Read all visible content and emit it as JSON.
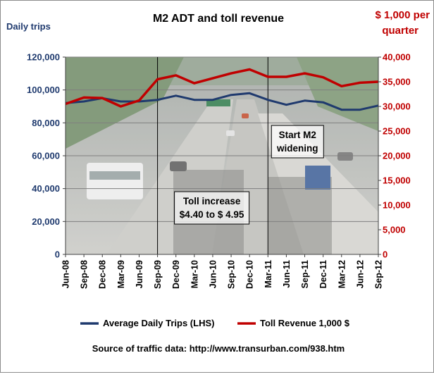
{
  "chart_data": {
    "type": "line",
    "title": "M2 ADT and toll revenue",
    "ylabel_left": "Daily trips",
    "ylabel_right": "$ 1,000 per quarter",
    "y_left_ticks": [
      "0",
      "20,000",
      "40,000",
      "60,000",
      "80,000",
      "100,000",
      "120,000"
    ],
    "y_left_lim": [
      0,
      120000
    ],
    "y_right_ticks": [
      "0",
      "5,000",
      "10,000",
      "15,000",
      "20,000",
      "25,000",
      "30,000",
      "35,000",
      "40,000"
    ],
    "y_right_lim": [
      0,
      40000
    ],
    "x_tick_labels": [
      "Jun-08",
      "Sep-08",
      "Dec-08",
      "Mar-09",
      "Jun-09",
      "Sep-09",
      "Dec-09",
      "Mar-10",
      "Jun-10",
      "Sep-10",
      "Dec-10",
      "Mar-11",
      "Jun-11",
      "Sep-11",
      "Dec-11",
      "Mar-12",
      "Jun-12",
      "Sep-12"
    ],
    "series": [
      {
        "name": "Average Daily Trips (LHS)",
        "axis": "left",
        "color": "#1f3a6e",
        "values": [
          92000,
          93000,
          95000,
          93000,
          93000,
          94000,
          96500,
          94000,
          94000,
          97000,
          98000,
          94000,
          91000,
          93500,
          92500,
          88000,
          88000,
          90500
        ]
      },
      {
        "name": "Toll Revenue 1,000 $",
        "axis": "right",
        "color": "#c00000",
        "values": [
          30500,
          31800,
          31700,
          30000,
          31200,
          35500,
          36300,
          34700,
          35700,
          36700,
          37500,
          36000,
          36000,
          36700,
          35900,
          34100,
          34800,
          35000
        ]
      }
    ],
    "annotations": [
      {
        "text_lines": [
          "Toll increase",
          "$4.40 to $ 4.95"
        ],
        "at": "Sep-09"
      },
      {
        "text_lines": [
          "Start M2",
          "widening"
        ],
        "at": "Mar-11"
      }
    ],
    "grid": true,
    "legend_position": "bottom",
    "source_note": "Source of traffic data: http://www.transurban.com/938.htm",
    "colors": {
      "left_axis_text": "#1f3a6e",
      "right_axis_text": "#c00000",
      "plot_background": "#b0b4b0"
    }
  }
}
